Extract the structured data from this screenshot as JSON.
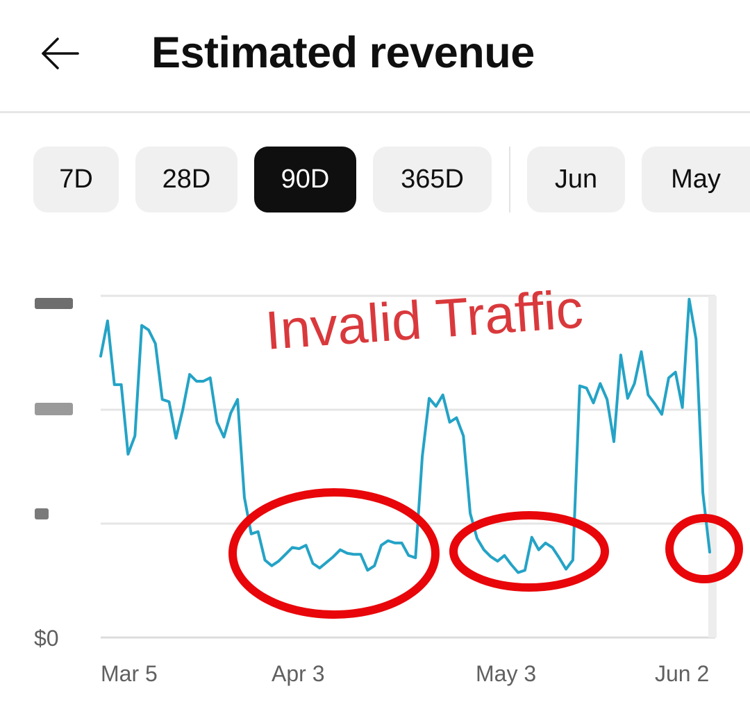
{
  "header": {
    "back_icon": "arrow-left-icon",
    "title": "Estimated revenue"
  },
  "range_chips": [
    {
      "label": "7D",
      "selected": false
    },
    {
      "label": "28D",
      "selected": false
    },
    {
      "label": "90D",
      "selected": true
    },
    {
      "label": "365D",
      "selected": false
    },
    {
      "label": "Jun",
      "selected": false
    },
    {
      "label": "May",
      "selected": false
    }
  ],
  "colors": {
    "line": "#24a3c6",
    "annotation": "#e8060a",
    "annotation_text": "#d9393c",
    "active_chip": "#0f0f0f"
  },
  "chart_data": {
    "type": "line",
    "title": "Estimated revenue",
    "annotation": "Invalid Traffic",
    "y_tick_labels": [
      "$0"
    ],
    "y_range": [
      0,
      3
    ],
    "gridlines": 4,
    "x_tick_labels": [
      "Mar 5",
      "Apr 3",
      "May 3",
      "Jun 2"
    ],
    "series": [
      {
        "name": "Estimated revenue",
        "values": [
          2.47,
          2.78,
          2.22,
          2.22,
          1.61,
          1.77,
          2.74,
          2.7,
          2.58,
          2.09,
          2.07,
          1.75,
          2.0,
          2.31,
          2.25,
          2.25,
          2.28,
          1.89,
          1.76,
          1.97,
          2.09,
          1.23,
          0.91,
          0.93,
          0.68,
          0.63,
          0.67,
          0.73,
          0.79,
          0.78,
          0.81,
          0.65,
          0.61,
          0.66,
          0.71,
          0.77,
          0.74,
          0.73,
          0.73,
          0.59,
          0.63,
          0.81,
          0.85,
          0.83,
          0.83,
          0.72,
          0.7,
          1.59,
          2.1,
          2.03,
          2.13,
          1.89,
          1.93,
          1.77,
          1.09,
          0.87,
          0.77,
          0.71,
          0.67,
          0.72,
          0.64,
          0.57,
          0.59,
          0.88,
          0.77,
          0.83,
          0.79,
          0.7,
          0.6,
          0.68,
          2.21,
          2.19,
          2.06,
          2.23,
          2.09,
          1.72,
          2.48,
          2.1,
          2.23,
          2.51,
          2.13,
          2.05,
          1.96,
          2.28,
          2.33,
          2.02,
          2.97,
          2.62,
          1.27,
          0.75
        ]
      }
    ]
  }
}
